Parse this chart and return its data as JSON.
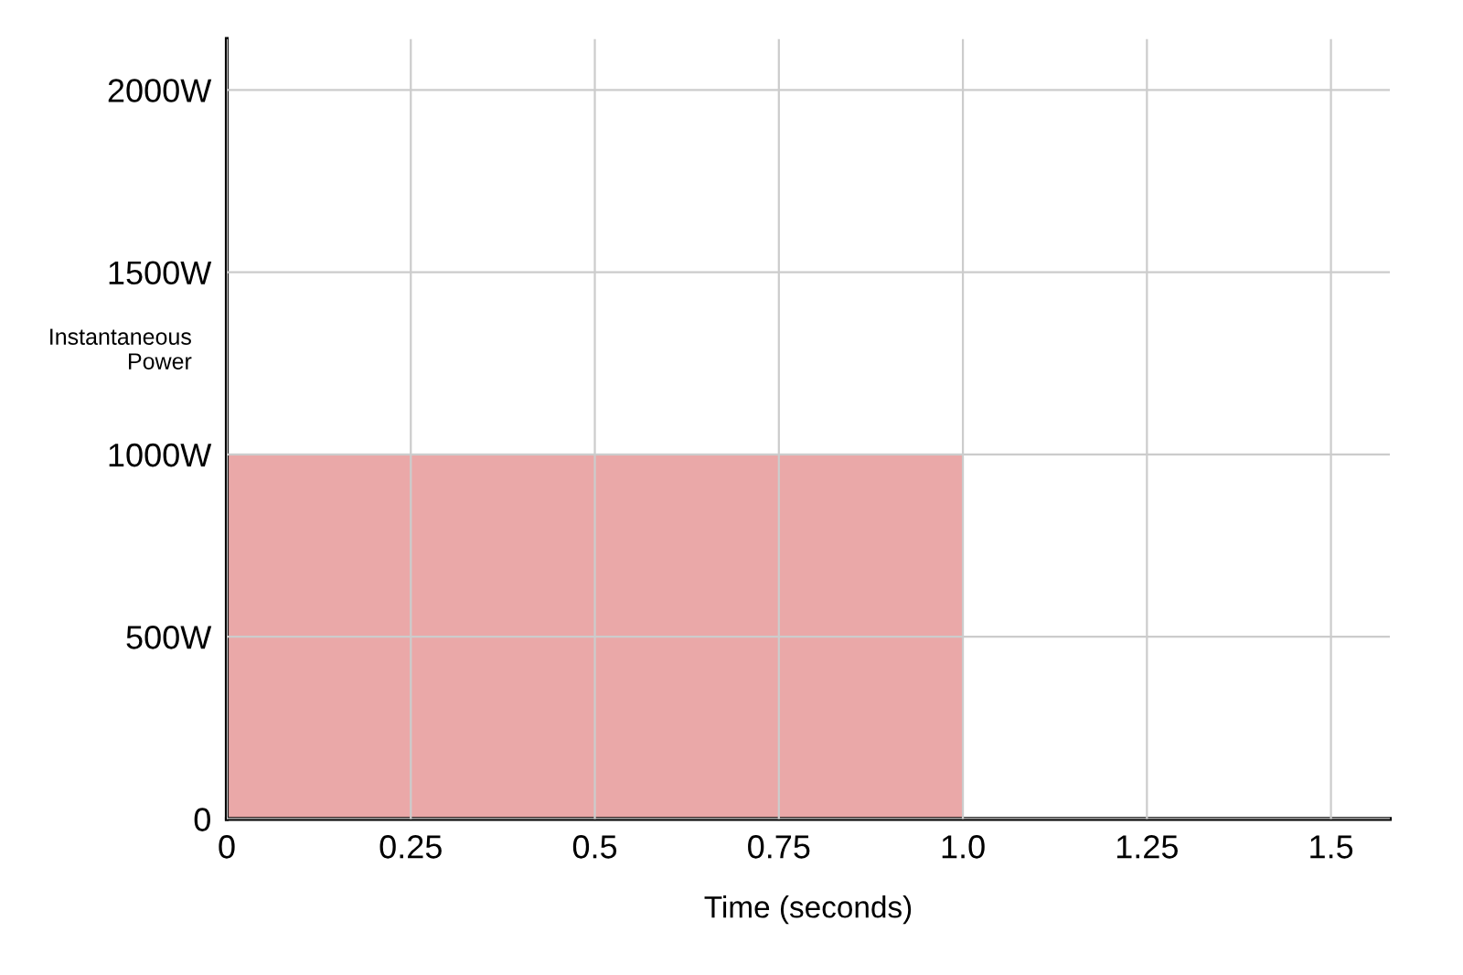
{
  "chart_data": {
    "type": "area",
    "xlabel": "Time (seconds)",
    "ylabel": "Instantaneous\nPower",
    "x": [
      0,
      1.0,
      1.0,
      1.58
    ],
    "series": [
      {
        "color": "#eaa8a8",
        "values": [
          1000,
          1000,
          0,
          0
        ]
      }
    ],
    "xlim": [
      0,
      1.58
    ],
    "ylim": [
      0,
      2140
    ],
    "xticks": [
      0,
      0.25,
      0.5,
      0.75,
      {
        "value": 1.0,
        "label": "1.0"
      },
      1.25,
      1.5
    ],
    "yticks": [
      0,
      {
        "value": 500,
        "label": "500W"
      },
      {
        "value": 1000,
        "label": "1000W"
      },
      {
        "value": 1500,
        "label": "1500W"
      },
      {
        "value": 2000,
        "label": "2000W"
      }
    ],
    "grid": true
  }
}
